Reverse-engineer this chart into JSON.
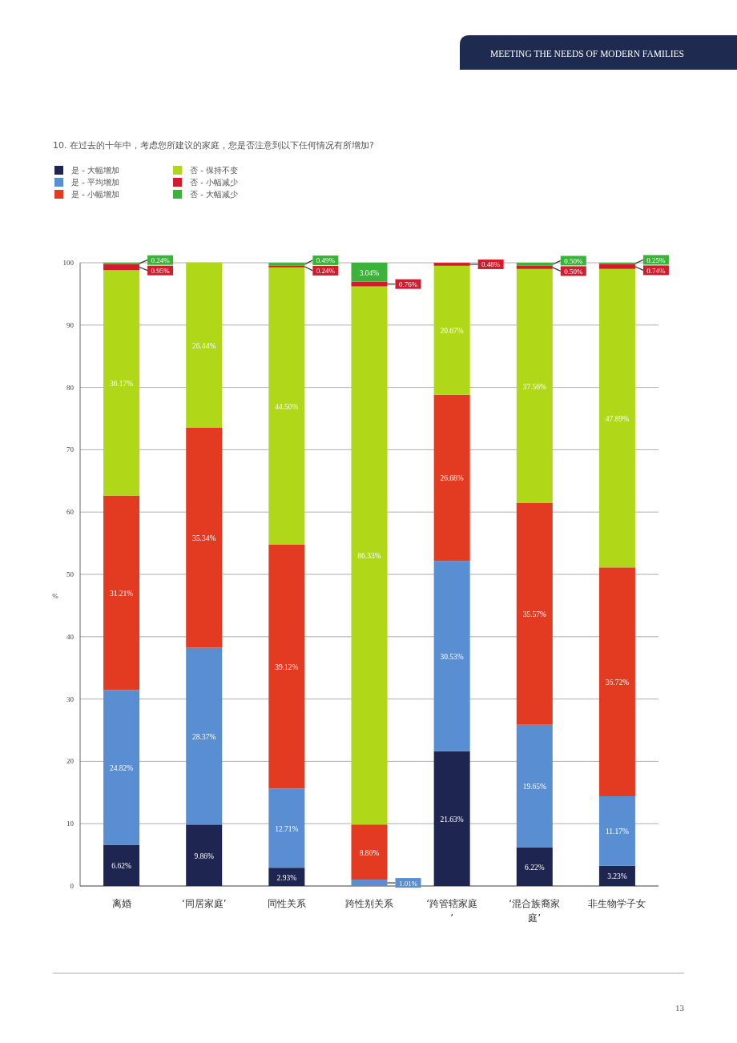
{
  "chart_data": {
    "type": "bar",
    "stacked": true,
    "title": "10. 在过去的十年中，考虑您所建议的家庭，您是否注意到以下任何情况有所增加?",
    "ylabel": "%",
    "categories": [
      "离婚",
      "‘同居家庭’",
      "同性关系",
      "跨性别关系",
      "‘跨管辖家庭’",
      "‘混合族裔家庭’",
      "非生物学子女"
    ],
    "series": [
      {
        "name": "是 - 大幅增加",
        "color": "#1e2550",
        "values": [
          6.62,
          9.86,
          2.93,
          null,
          21.63,
          6.22,
          3.23
        ],
        "value_labels": [
          "6.62%",
          "9.86%",
          "2.93%",
          null,
          "21.63%",
          "6.22%",
          "3.23%"
        ]
      },
      {
        "name": "是 - 平均增加",
        "color": "#5a8ed2",
        "values": [
          24.82,
          28.37,
          12.71,
          1.01,
          30.53,
          19.65,
          11.17
        ],
        "value_labels": [
          "24.82%",
          "28.37%",
          "12.71%",
          "1.01%",
          "30.53%",
          "19.65%",
          "11.17%"
        ]
      },
      {
        "name": "是 - 小幅增加",
        "color": "#e33b22",
        "values": [
          31.21,
          35.34,
          39.12,
          8.86,
          26.68,
          35.57,
          36.72
        ],
        "value_labels": [
          "31.21%",
          "35.34%",
          "39.12%",
          "8.86%",
          "26.68%",
          "35.57%",
          "36.72%"
        ]
      },
      {
        "name": "否 - 保持不变",
        "color": "#b0d818",
        "values": [
          36.17,
          26.44,
          44.5,
          86.33,
          20.67,
          37.56,
          47.89
        ],
        "value_labels": [
          "36.17%",
          "26.44%",
          "44.50%",
          "86.33%",
          "20.67%",
          "37.56%",
          "47.89%"
        ]
      },
      {
        "name": "否 - 小幅减少",
        "color": "#d01c2e",
        "values": [
          0.95,
          null,
          0.24,
          0.76,
          0.48,
          0.5,
          0.74
        ],
        "value_labels": [
          "0.95%",
          null,
          "0.24%",
          "0.76%",
          "0.48%",
          "0.50%",
          "0.74%"
        ]
      },
      {
        "name": "否 - 大幅减少",
        "color": "#3bb33a",
        "values": [
          0.24,
          null,
          0.49,
          3.04,
          null,
          0.5,
          0.25
        ],
        "value_labels": [
          "0.24%",
          null,
          "0.49%",
          "3.04%",
          null,
          "0.50%",
          "0.25%"
        ]
      }
    ],
    "ylim": [
      0,
      100
    ],
    "yticks": [
      0,
      10,
      20,
      30,
      40,
      50,
      60,
      70,
      80,
      90,
      100
    ],
    "grid": "y",
    "legend": "top left",
    "annotations": [
      "MEETING THE NEEDS OF MODERN FAMILIES",
      "13"
    ]
  }
}
